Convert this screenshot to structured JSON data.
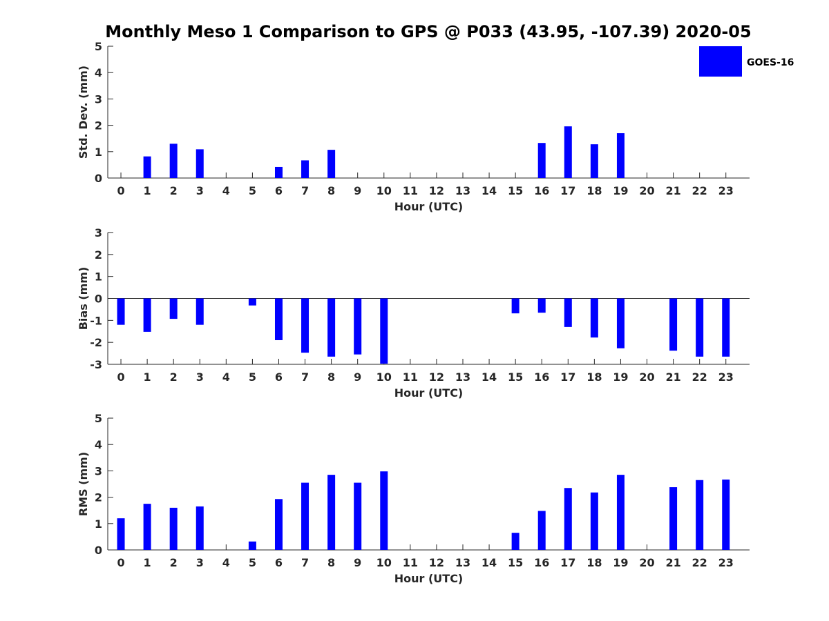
{
  "title": "Monthly Meso 1 Comparison to GPS @ P033 (43.95, -107.39) 2020-05",
  "legend": {
    "label": "GOES-16",
    "color": "#0000ff"
  },
  "colors": {
    "bar": "#0000ff",
    "axis": "#262626"
  },
  "chart_data": [
    {
      "type": "bar",
      "xlabel": "Hour (UTC)",
      "ylabel": "Std. Dev. (mm)",
      "ylim": [
        0,
        5
      ],
      "yticks": [
        0,
        1,
        2,
        3,
        4,
        5
      ],
      "categories": [
        "0",
        "1",
        "2",
        "3",
        "4",
        "5",
        "6",
        "7",
        "8",
        "9",
        "10",
        "11",
        "12",
        "13",
        "14",
        "15",
        "16",
        "17",
        "18",
        "19",
        "20",
        "21",
        "22",
        "23"
      ],
      "series": [
        {
          "name": "GOES-16",
          "values": [
            null,
            0.82,
            1.3,
            1.09,
            null,
            null,
            0.42,
            0.67,
            1.07,
            null,
            null,
            null,
            null,
            null,
            null,
            null,
            1.33,
            1.96,
            1.28,
            1.7,
            null,
            null,
            null,
            null
          ]
        }
      ]
    },
    {
      "type": "bar",
      "xlabel": "Hour (UTC)",
      "ylabel": "Bias (mm)",
      "ylim": [
        -3,
        3
      ],
      "yticks": [
        -3,
        -2,
        -1,
        0,
        1,
        2,
        3
      ],
      "categories": [
        "0",
        "1",
        "2",
        "3",
        "4",
        "5",
        "6",
        "7",
        "8",
        "9",
        "10",
        "11",
        "12",
        "13",
        "14",
        "15",
        "16",
        "17",
        "18",
        "19",
        "20",
        "21",
        "22",
        "23"
      ],
      "series": [
        {
          "name": "GOES-16",
          "values": [
            -1.2,
            -1.52,
            -0.93,
            -1.2,
            null,
            -0.32,
            -1.9,
            -2.47,
            -2.65,
            -2.55,
            -2.97,
            null,
            null,
            null,
            null,
            -0.68,
            -0.65,
            -1.3,
            -1.78,
            -2.27,
            null,
            -2.38,
            -2.65,
            -2.65
          ]
        }
      ]
    },
    {
      "type": "bar",
      "xlabel": "Hour (UTC)",
      "ylabel": "RMS (mm)",
      "ylim": [
        0,
        5
      ],
      "yticks": [
        0,
        1,
        2,
        3,
        4,
        5
      ],
      "categories": [
        "0",
        "1",
        "2",
        "3",
        "4",
        "5",
        "6",
        "7",
        "8",
        "9",
        "10",
        "11",
        "12",
        "13",
        "14",
        "15",
        "16",
        "17",
        "18",
        "19",
        "20",
        "21",
        "22",
        "23"
      ],
      "series": [
        {
          "name": "GOES-16",
          "values": [
            1.2,
            1.75,
            1.6,
            1.65,
            null,
            0.32,
            1.93,
            2.55,
            2.85,
            2.55,
            2.98,
            null,
            null,
            null,
            null,
            0.65,
            1.48,
            2.35,
            2.18,
            2.85,
            null,
            2.38,
            2.65,
            2.67
          ]
        }
      ]
    }
  ]
}
